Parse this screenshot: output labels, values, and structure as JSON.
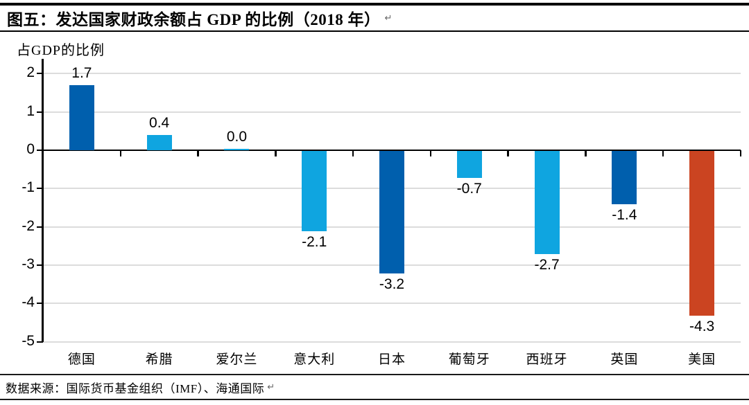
{
  "header": {
    "title": "图五：发达国家财政余额占 GDP 的比例（2018 年）",
    "return_mark": "↵"
  },
  "footer": {
    "source": "数据来源：国际货币基金组织（IMF）、海通国际",
    "return_mark": "↵"
  },
  "chart_data": {
    "type": "bar",
    "title": "图五：发达国家财政余额占 GDP 的比例（2018 年）",
    "ylabel": "占GDP的比例",
    "xlabel": "",
    "categories": [
      "德国",
      "希腊",
      "爱尔兰",
      "意大利",
      "日本",
      "葡萄牙",
      "西班牙",
      "英国",
      "美国"
    ],
    "values": [
      1.7,
      0.4,
      0.0,
      -2.1,
      -3.2,
      -0.7,
      -2.7,
      -1.4,
      -4.3
    ],
    "value_labels": [
      "1.7",
      "0.4",
      "0.0",
      "-2.1",
      "-3.2",
      "-0.7",
      "-2.7",
      "-1.4",
      "-4.3"
    ],
    "bar_colors": [
      "#005FAD",
      "#0FA5E0",
      "#0FA5E0",
      "#0FA5E0",
      "#005FAD",
      "#0FA5E0",
      "#0FA5E0",
      "#005FAD",
      "#CB4421"
    ],
    "ylim": [
      -5,
      2
    ],
    "yticks": [
      2,
      1,
      0,
      -1,
      -2,
      -3,
      -4,
      -5
    ],
    "grid": true,
    "gridline_color": "#dcdcdc",
    "legend": null,
    "source": "数据来源：国际货币基金组织（IMF）、海通国际"
  },
  "colors": {
    "dark_blue": "#005FAD",
    "light_blue": "#0FA5E0",
    "red_orange": "#CB4421",
    "axis": "#000000",
    "gridline": "#dcdcdc"
  }
}
